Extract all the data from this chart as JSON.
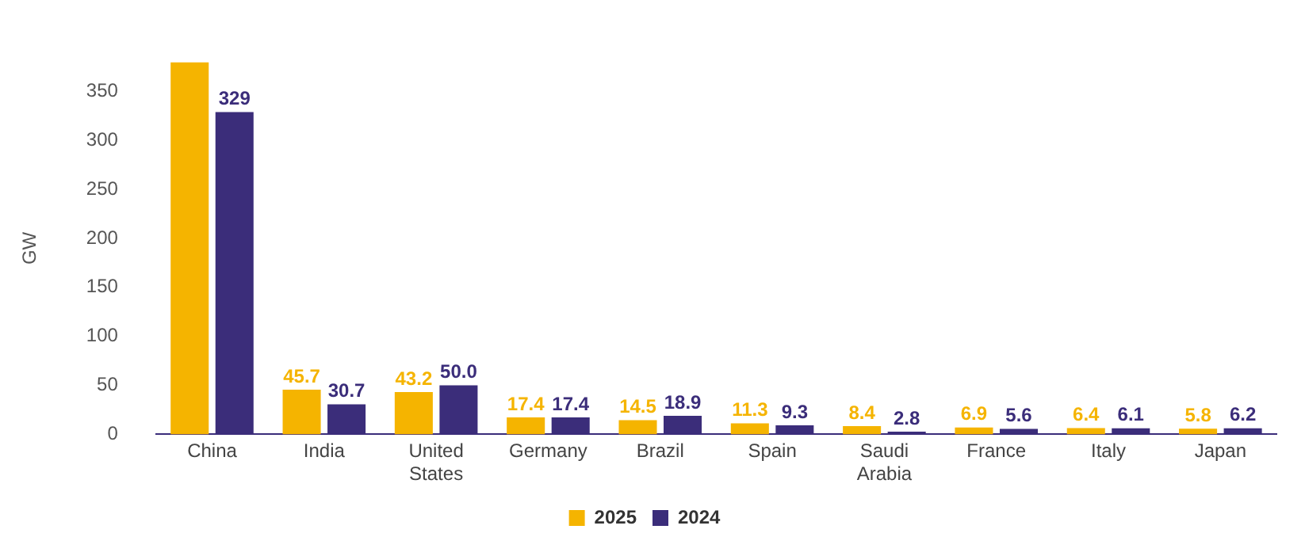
{
  "chart_data": {
    "type": "bar",
    "ylabel": "GW",
    "categories": [
      "China",
      "India",
      "United States",
      "Germany",
      "Brazil",
      "Spain",
      "Saudi Arabia",
      "France",
      "Italy",
      "Japan"
    ],
    "series": [
      {
        "name": "2025",
        "color": "#f5b400",
        "values": [
          380,
          45.7,
          43.2,
          17.4,
          14.5,
          11.3,
          8.4,
          6.9,
          6.4,
          5.8
        ],
        "value_labels": [
          null,
          "45.7",
          "43.2",
          "17.4",
          "14.5",
          "11.3",
          "8.4",
          "6.9",
          "6.4",
          "5.8"
        ]
      },
      {
        "name": "2024",
        "color": "#3b2d7a",
        "values": [
          329,
          30.7,
          50.0,
          17.4,
          18.9,
          9.3,
          2.8,
          5.6,
          6.1,
          6.2
        ],
        "value_labels": [
          "329",
          "30.7",
          "50.0",
          "17.4",
          "18.9",
          "9.3",
          "2.8",
          "5.6",
          "6.1",
          "6.2"
        ]
      }
    ],
    "ylim": [
      0,
      380
    ],
    "yticks": [
      0,
      50,
      100,
      150,
      200,
      250,
      300,
      350
    ],
    "grid": false,
    "legend": "bottom"
  }
}
